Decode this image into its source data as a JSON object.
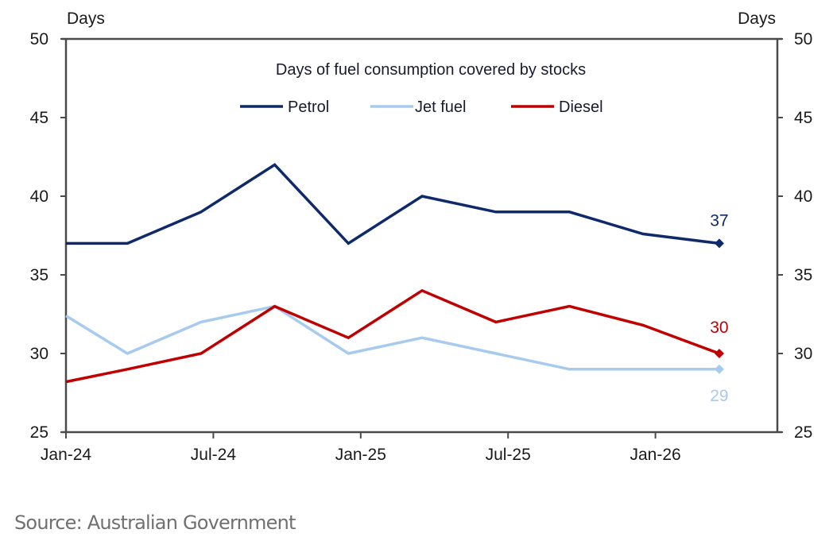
{
  "chart_data": {
    "type": "line",
    "title": "Days of fuel consumption covered by stocks",
    "xlabel": "",
    "ylabel_left": "Days",
    "ylabel_right": "Days",
    "ylim": [
      25,
      50
    ],
    "yticks": [
      25,
      30,
      35,
      40,
      45,
      50
    ],
    "xticks": [
      {
        "label": "Jan-24",
        "month": 0
      },
      {
        "label": "Jul-24",
        "month": 6
      },
      {
        "label": "Jan-25",
        "month": 12
      },
      {
        "label": "Jul-25",
        "month": 18
      },
      {
        "label": "Jan-26",
        "month": 24
      }
    ],
    "xlim_months": [
      0,
      30
    ],
    "x": [
      0,
      2.5,
      5.5,
      8.5,
      11.5,
      14.5,
      17.5,
      20.5,
      23.5,
      26.6
    ],
    "series": [
      {
        "name": "Petrol",
        "color": "#0f2a6b",
        "values": [
          37,
          37,
          39,
          42,
          37,
          40,
          39,
          39,
          37.6,
          37
        ],
        "end_label": "37"
      },
      {
        "name": "Jet fuel",
        "color": "#a7cbee",
        "values": [
          32.4,
          30,
          32,
          33,
          30,
          31,
          30,
          29,
          29,
          29
        ],
        "end_label": "29"
      },
      {
        "name": "Diesel",
        "color": "#c00000",
        "values": [
          28.2,
          29,
          30,
          33,
          31,
          34,
          32,
          33,
          31.8,
          30
        ],
        "end_label": "30"
      }
    ],
    "legend": "top-center",
    "grid": false
  },
  "source": "Source: Australian Government"
}
